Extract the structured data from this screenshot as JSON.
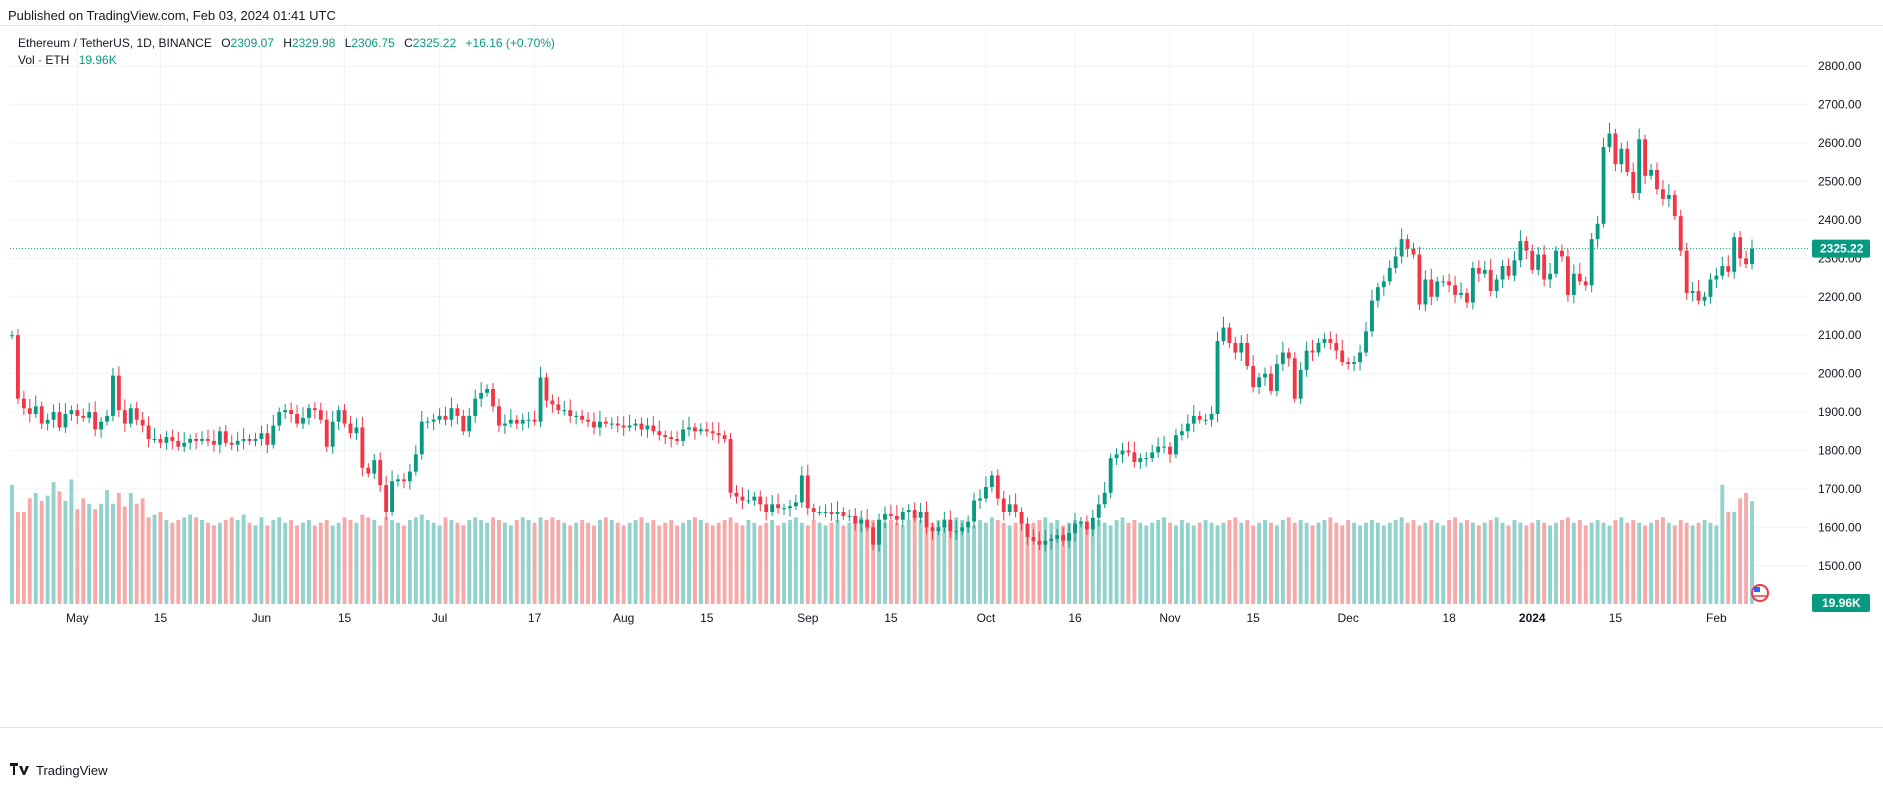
{
  "header": {
    "published": "Published on TradingView.com, Feb 03, 2024 01:41 UTC"
  },
  "legend": {
    "symbol": "Ethereum / TetherUS, 1D, BINANCE",
    "open_label": "O",
    "open": "2309.07",
    "high_label": "H",
    "high": "2329.98",
    "low_label": "L",
    "low": "2306.75",
    "close_label": "C",
    "close": "2325.22",
    "change": "+16.16 (+0.70%)",
    "vol_label": "Vol · ETH",
    "vol_value": "19.96K"
  },
  "footer": {
    "brand": "TradingView"
  },
  "chart_data": {
    "type": "candlestick",
    "title": "Ethereum / TetherUS, 1D, BINANCE",
    "ylim": [
      1450,
      2850
    ],
    "y_ticks": [
      "1500.00",
      "1600.00",
      "1700.00",
      "1800.00",
      "1900.00",
      "2000.00",
      "2100.00",
      "2200.00",
      "2300.00",
      "2400.00",
      "2500.00",
      "2600.00",
      "2700.00",
      "2800.00"
    ],
    "x_tick_labels": [
      {
        "label": "May",
        "day": 0,
        "bold": false
      },
      {
        "label": "15",
        "day": 14,
        "bold": false
      },
      {
        "label": "Jun",
        "day": 31,
        "bold": false
      },
      {
        "label": "15",
        "day": 45,
        "bold": false
      },
      {
        "label": "Jul",
        "day": 61,
        "bold": false
      },
      {
        "label": "17",
        "day": 77,
        "bold": false
      },
      {
        "label": "Aug",
        "day": 92,
        "bold": false
      },
      {
        "label": "15",
        "day": 106,
        "bold": false
      },
      {
        "label": "Sep",
        "day": 123,
        "bold": false
      },
      {
        "label": "15",
        "day": 137,
        "bold": false
      },
      {
        "label": "Oct",
        "day": 153,
        "bold": false
      },
      {
        "label": "16",
        "day": 168,
        "bold": false
      },
      {
        "label": "Nov",
        "day": 184,
        "bold": false
      },
      {
        "label": "15",
        "day": 198,
        "bold": false
      },
      {
        "label": "Dec",
        "day": 214,
        "bold": false
      },
      {
        "label": "18",
        "day": 231,
        "bold": false
      },
      {
        "label": "2024",
        "day": 245,
        "bold": true
      },
      {
        "label": "15",
        "day": 259,
        "bold": false
      },
      {
        "label": "Feb",
        "day": 276,
        "bold": false
      }
    ],
    "first_day_offset": -11,
    "last_price": "2325.22",
    "last_price_value": 2325.22,
    "last_volume": "19.96K",
    "volume_scale_max": 2.75,
    "colors": {
      "up": "#089981",
      "down": "#f23645",
      "up_vol": "#92d2cc",
      "down_vol": "#f7a9a7"
    },
    "closes": [
      2100,
      1935,
      1910,
      1895,
      1915,
      1870,
      1880,
      1900,
      1860,
      1895,
      1905,
      1890,
      1885,
      1900,
      1855,
      1875,
      1890,
      1995,
      1905,
      1870,
      1910,
      1880,
      1865,
      1830,
      1830,
      1820,
      1835,
      1825,
      1810,
      1820,
      1830,
      1825,
      1830,
      1825,
      1815,
      1850,
      1820,
      1815,
      1825,
      1830,
      1825,
      1830,
      1845,
      1815,
      1865,
      1900,
      1905,
      1895,
      1870,
      1885,
      1910,
      1905,
      1880,
      1810,
      1875,
      1905,
      1870,
      1845,
      1860,
      1755,
      1740,
      1775,
      1710,
      1640,
      1720,
      1725,
      1720,
      1745,
      1790,
      1875,
      1875,
      1880,
      1890,
      1880,
      1910,
      1890,
      1850,
      1890,
      1935,
      1950,
      1960,
      1915,
      1865,
      1870,
      1880,
      1870,
      1880,
      1880,
      1875,
      1990,
      1930,
      1920,
      1905,
      1905,
      1890,
      1890,
      1880,
      1875,
      1860,
      1875,
      1870,
      1870,
      1865,
      1860,
      1865,
      1870,
      1855,
      1865,
      1850,
      1840,
      1835,
      1830,
      1825,
      1855,
      1860,
      1850,
      1855,
      1850,
      1845,
      1840,
      1830,
      1690,
      1680,
      1670,
      1670,
      1680,
      1660,
      1640,
      1660,
      1650,
      1650,
      1655,
      1665,
      1735,
      1650,
      1640,
      1640,
      1640,
      1635,
      1640,
      1630,
      1630,
      1610,
      1620,
      1600,
      1555,
      1620,
      1635,
      1630,
      1620,
      1640,
      1645,
      1625,
      1640,
      1600,
      1590,
      1600,
      1620,
      1590,
      1590,
      1600,
      1615,
      1670,
      1675,
      1705,
      1735,
      1675,
      1640,
      1660,
      1640,
      1610,
      1575,
      1565,
      1555,
      1565,
      1570,
      1580,
      1565,
      1585,
      1610,
      1615,
      1595,
      1625,
      1660,
      1690,
      1780,
      1790,
      1800,
      1795,
      1770,
      1780,
      1780,
      1795,
      1810,
      1810,
      1790,
      1840,
      1850,
      1870,
      1890,
      1880,
      1880,
      1895,
      2085,
      2120,
      2080,
      2055,
      2080,
      2020,
      1965,
      1990,
      2000,
      1955,
      2025,
      2055,
      2040,
      1935,
      2010,
      2060,
      2055,
      2080,
      2090,
      2080,
      2060,
      2030,
      2025,
      2030,
      2055,
      2110,
      2190,
      2225,
      2240,
      2275,
      2305,
      2350,
      2325,
      2310,
      2180,
      2245,
      2200,
      2240,
      2240,
      2230,
      2205,
      2210,
      2185,
      2275,
      2260,
      2270,
      2215,
      2245,
      2280,
      2255,
      2295,
      2345,
      2320,
      2270,
      2310,
      2245,
      2260,
      2320,
      2305,
      2205,
      2260,
      2240,
      2230,
      2350,
      2390,
      2590,
      2625,
      2545,
      2585,
      2525,
      2470,
      2610,
      2515,
      2530,
      2480,
      2455,
      2465,
      2410,
      2320,
      2210,
      2215,
      2190,
      2200,
      2245,
      2255,
      2280,
      2265,
      2355,
      2300,
      2285,
      2325
    ],
    "volumes": [
      2.2,
      1.7,
      1.7,
      1.95,
      2.05,
      1.9,
      2.0,
      2.25,
      2.08,
      1.9,
      2.3,
      1.75,
      1.95,
      1.85,
      1.75,
      1.85,
      2.1,
      1.85,
      2.05,
      1.8,
      2.05,
      1.85,
      1.95,
      1.6,
      1.65,
      1.7,
      1.55,
      1.5,
      1.55,
      1.6,
      1.65,
      1.6,
      1.55,
      1.5,
      1.45,
      1.5,
      1.55,
      1.6,
      1.55,
      1.65,
      1.5,
      1.45,
      1.6,
      1.45,
      1.55,
      1.6,
      1.5,
      1.55,
      1.45,
      1.5,
      1.55,
      1.45,
      1.5,
      1.55,
      1.45,
      1.5,
      1.6,
      1.55,
      1.5,
      1.65,
      1.6,
      1.55,
      1.45,
      1.6,
      1.55,
      1.5,
      1.45,
      1.55,
      1.6,
      1.65,
      1.55,
      1.5,
      1.45,
      1.6,
      1.55,
      1.5,
      1.45,
      1.55,
      1.6,
      1.55,
      1.5,
      1.6,
      1.55,
      1.5,
      1.45,
      1.55,
      1.6,
      1.55,
      1.5,
      1.6,
      1.55,
      1.6,
      1.55,
      1.5,
      1.45,
      1.5,
      1.55,
      1.5,
      1.45,
      1.55,
      1.6,
      1.55,
      1.5,
      1.45,
      1.5,
      1.55,
      1.6,
      1.5,
      1.55,
      1.45,
      1.5,
      1.55,
      1.45,
      1.5,
      1.55,
      1.6,
      1.55,
      1.5,
      1.45,
      1.5,
      1.55,
      1.6,
      1.5,
      1.45,
      1.55,
      1.5,
      1.45,
      1.5,
      1.55,
      1.45,
      1.5,
      1.55,
      1.6,
      1.5,
      1.45,
      1.55,
      1.5,
      1.45,
      1.5,
      1.55,
      1.45,
      1.5,
      1.55,
      1.6,
      1.5,
      1.55,
      1.45,
      1.5,
      1.55,
      1.5,
      1.45,
      1.55,
      1.6,
      1.55,
      1.45,
      1.5,
      1.55,
      1.45,
      1.5,
      1.6,
      1.55,
      1.5,
      1.45,
      1.55,
      1.5,
      1.6,
      1.55,
      1.5,
      1.45,
      1.5,
      1.55,
      1.45,
      1.5,
      1.55,
      1.6,
      1.5,
      1.55,
      1.45,
      1.5,
      1.55,
      1.5,
      1.45,
      1.5,
      1.55,
      1.5,
      1.45,
      1.55,
      1.6,
      1.5,
      1.55,
      1.5,
      1.45,
      1.5,
      1.55,
      1.6,
      1.5,
      1.45,
      1.55,
      1.5,
      1.45,
      1.5,
      1.55,
      1.5,
      1.45,
      1.5,
      1.55,
      1.6,
      1.5,
      1.55,
      1.45,
      1.5,
      1.55,
      1.5,
      1.45,
      1.55,
      1.6,
      1.5,
      1.55,
      1.5,
      1.45,
      1.5,
      1.55,
      1.6,
      1.5,
      1.45,
      1.55,
      1.5,
      1.45,
      1.5,
      1.55,
      1.5,
      1.45,
      1.5,
      1.55,
      1.6,
      1.5,
      1.55,
      1.45,
      1.5,
      1.55,
      1.5,
      1.45,
      1.55,
      1.6,
      1.5,
      1.55,
      1.5,
      1.45,
      1.5,
      1.55,
      1.6,
      1.5,
      1.45,
      1.55,
      1.5,
      1.45,
      1.5,
      1.55,
      1.5,
      1.45,
      1.5,
      1.55,
      1.6,
      1.5,
      1.55,
      1.45,
      1.5,
      1.55,
      1.5,
      1.45,
      1.55,
      1.6,
      1.5,
      1.55,
      1.5,
      1.45,
      1.5,
      1.55,
      1.6,
      1.5,
      1.45,
      1.55,
      1.5,
      1.45,
      1.5,
      1.55,
      1.5,
      1.45
    ]
  }
}
